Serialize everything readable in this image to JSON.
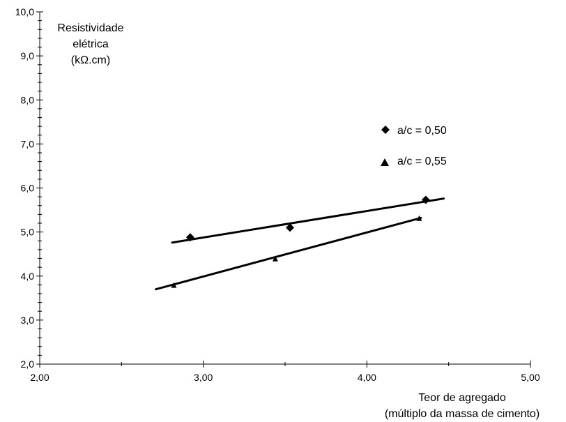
{
  "chart_data": {
    "type": "scatter",
    "title": "",
    "xlabel": [
      "Teor de agregado",
      "(múltiplo da massa de cimento)"
    ],
    "ylabel": [
      "Resistividade",
      "elétrica",
      "(kΩ.cm)"
    ],
    "xlim": [
      2.0,
      5.0
    ],
    "ylim": [
      2.0,
      10.0
    ],
    "x_ticks": [
      "2,00",
      "3,00",
      "4,00",
      "5,00"
    ],
    "y_ticks": [
      "2,0",
      "3,0",
      "4,0",
      "5,0",
      "6,0",
      "7,0",
      "8,0",
      "9,0",
      "10,0"
    ],
    "grid": false,
    "legend_position": "top-right",
    "series": [
      {
        "name": "a/c = 0,50",
        "marker": "diamond",
        "points": [
          {
            "x": 2.92,
            "y": 4.88
          },
          {
            "x": 3.53,
            "y": 5.1
          },
          {
            "x": 4.36,
            "y": 5.73
          }
        ],
        "trendline": [
          {
            "x": 2.81,
            "y": 4.76
          },
          {
            "x": 4.47,
            "y": 5.76
          }
        ]
      },
      {
        "name": "a/c = 0,55",
        "marker": "triangle",
        "points": [
          {
            "x": 2.82,
            "y": 3.78
          },
          {
            "x": 3.44,
            "y": 4.38
          },
          {
            "x": 4.32,
            "y": 5.3
          }
        ],
        "trendline": [
          {
            "x": 2.71,
            "y": 3.7
          },
          {
            "x": 4.33,
            "y": 5.32
          }
        ]
      }
    ]
  }
}
